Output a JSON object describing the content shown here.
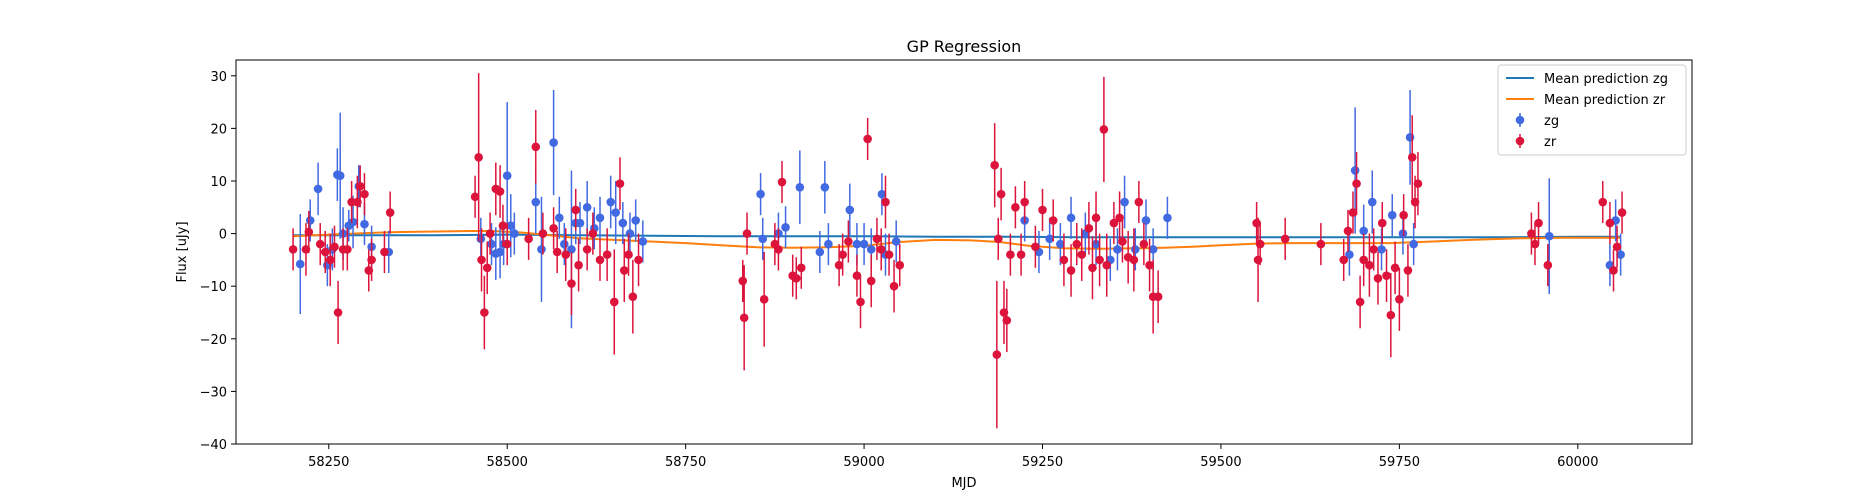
{
  "chart_data": {
    "type": "scatter",
    "title": "GP Regression",
    "xlabel": "MJD",
    "ylabel": "Flux [uJy]",
    "xlim": [
      58120,
      60160
    ],
    "ylim": [
      -40,
      33
    ],
    "xticks": [
      58250,
      58500,
      58750,
      59000,
      59250,
      59500,
      59750,
      60000
    ],
    "yticks": [
      -40,
      -30,
      -20,
      -10,
      0,
      10,
      20,
      30
    ],
    "legend_position": "upper right",
    "legend": [
      "Mean prediction zg",
      "Mean prediction zr",
      "zg",
      "zr"
    ],
    "colors": {
      "zg": "#4169e1",
      "zr": "#dc143c",
      "mean_zg": "#1f77b4",
      "mean_zr": "#ff7f0e"
    },
    "lines": [
      {
        "name": "Mean prediction zg",
        "x": [
          58200,
          58300,
          58400,
          58500,
          58600,
          58700,
          58800,
          58900,
          59000,
          59100,
          59200,
          59300,
          59400,
          59500,
          59600,
          59700,
          59800,
          59900,
          60000,
          60060
        ],
        "y": [
          -0.3,
          -0.3,
          -0.3,
          -0.2,
          -0.3,
          -0.4,
          -0.5,
          -0.5,
          -0.5,
          -0.6,
          -0.6,
          -0.7,
          -0.7,
          -0.7,
          -0.7,
          -0.7,
          -0.7,
          -0.7,
          -0.6,
          -0.6
        ]
      },
      {
        "name": "Mean prediction zr",
        "x": [
          58200,
          58250,
          58300,
          58350,
          58400,
          58450,
          58480,
          58520,
          58560,
          58600,
          58650,
          58700,
          58750,
          58800,
          58850,
          58900,
          58950,
          59000,
          59050,
          59100,
          59150,
          59190,
          59230,
          59280,
          59330,
          59380,
          59420,
          59460,
          59500,
          59550,
          59600,
          59650,
          59700,
          59740,
          59780,
          59850,
          59920,
          59980,
          60060
        ],
        "y": [
          -0.5,
          -0.2,
          0.1,
          0.3,
          0.4,
          0.5,
          0.5,
          0.2,
          -0.3,
          -0.9,
          -1.2,
          -1.5,
          -1.8,
          -2.2,
          -2.6,
          -2.7,
          -2.6,
          -2.3,
          -1.6,
          -1.2,
          -1.3,
          -1.6,
          -2.3,
          -2.8,
          -2.9,
          -2.8,
          -2.7,
          -2.5,
          -2.2,
          -1.9,
          -1.8,
          -1.8,
          -1.8,
          -1.8,
          -1.6,
          -1.2,
          -0.9,
          -0.8,
          -0.8
        ]
      }
    ],
    "series": [
      {
        "name": "zg",
        "points": [
          [
            58210,
            -5.8,
            9.5
          ],
          [
            58224,
            2.5,
            4
          ],
          [
            58235,
            8.5,
            5
          ],
          [
            58248,
            -6,
            4
          ],
          [
            58255,
            -3,
            4
          ],
          [
            58262,
            11.2,
            5
          ],
          [
            58266,
            11,
            12
          ],
          [
            58270,
            0,
            5
          ],
          [
            58278,
            1.5,
            3
          ],
          [
            58284,
            2.2,
            5
          ],
          [
            58292,
            9,
            4
          ],
          [
            58300,
            1.8,
            4
          ],
          [
            58310,
            -2.5,
            4
          ],
          [
            58334,
            -3.5,
            4
          ],
          [
            58463,
            -1,
            4
          ],
          [
            58478,
            -2,
            4
          ],
          [
            58484,
            -3.8,
            5
          ],
          [
            58490,
            -3.5,
            5
          ],
          [
            58495,
            -2,
            4
          ],
          [
            58500,
            11,
            14
          ],
          [
            58505,
            1.5,
            6
          ],
          [
            58510,
            0,
            4
          ],
          [
            58540,
            6,
            6
          ],
          [
            58548,
            -3,
            10
          ],
          [
            58565,
            17.3,
            10
          ],
          [
            58573,
            3,
            4
          ],
          [
            58580,
            -2,
            4
          ],
          [
            58590,
            -3,
            15
          ],
          [
            58596,
            2,
            4
          ],
          [
            58602,
            2,
            4
          ],
          [
            58612,
            5,
            5
          ],
          [
            58622,
            1,
            4
          ],
          [
            58630,
            3,
            4
          ],
          [
            58645,
            6,
            5
          ],
          [
            58652,
            4,
            6
          ],
          [
            58662,
            2,
            4
          ],
          [
            58672,
            0,
            4
          ],
          [
            58680,
            2.5,
            4
          ],
          [
            58690,
            -1.5,
            4
          ],
          [
            58855,
            7.5,
            4
          ],
          [
            58858,
            -1,
            4
          ],
          [
            58880,
            0,
            4
          ],
          [
            58890,
            1.2,
            4
          ],
          [
            58910,
            8.8,
            7
          ],
          [
            58938,
            -3.5,
            4
          ],
          [
            58945,
            8.8,
            5
          ],
          [
            58950,
            -2,
            4
          ],
          [
            58980,
            4.5,
            5
          ],
          [
            58990,
            -2,
            4
          ],
          [
            59000,
            -2,
            4
          ],
          [
            59010,
            -3,
            4
          ],
          [
            59025,
            7.5,
            4
          ],
          [
            59030,
            -4,
            4
          ],
          [
            59045,
            -1.5,
            4
          ],
          [
            59225,
            2.5,
            4
          ],
          [
            59245,
            -3.5,
            4
          ],
          [
            59260,
            -1,
            4
          ],
          [
            59275,
            -2,
            4
          ],
          [
            59290,
            3,
            4
          ],
          [
            59310,
            0,
            4
          ],
          [
            59325,
            -2,
            4
          ],
          [
            59345,
            -5,
            4
          ],
          [
            59355,
            -3,
            4
          ],
          [
            59365,
            6,
            5
          ],
          [
            59380,
            -3,
            4
          ],
          [
            59395,
            2.5,
            4
          ],
          [
            59405,
            -3,
            4
          ],
          [
            59425,
            3,
            4
          ],
          [
            59680,
            -4,
            4
          ],
          [
            59688,
            12,
            12
          ],
          [
            59700,
            0.5,
            5
          ],
          [
            59712,
            6,
            6
          ],
          [
            59725,
            -3,
            4
          ],
          [
            59740,
            3.5,
            4
          ],
          [
            59755,
            0,
            4
          ],
          [
            59765,
            18.3,
            9
          ],
          [
            59770,
            -2,
            4
          ],
          [
            59960,
            -0.5,
            11
          ],
          [
            60045,
            -6,
            4
          ],
          [
            60053,
            2.5,
            4
          ],
          [
            60060,
            -4,
            4
          ]
        ]
      },
      {
        "name": "zr",
        "points": [
          [
            58200,
            -3,
            4
          ],
          [
            58218,
            -3,
            5
          ],
          [
            58222,
            0.3,
            4
          ],
          [
            58238,
            -2,
            4
          ],
          [
            58245,
            -3.5,
            4
          ],
          [
            58252,
            -5,
            5
          ],
          [
            58258,
            -2.5,
            4
          ],
          [
            58263,
            -15,
            6
          ],
          [
            58270,
            -3,
            4
          ],
          [
            58276,
            -3,
            4
          ],
          [
            58282,
            6,
            4
          ],
          [
            58290,
            6,
            5
          ],
          [
            58294,
            9,
            4
          ],
          [
            58300,
            7.5,
            4
          ],
          [
            58306,
            -7,
            4
          ],
          [
            58310,
            -5,
            4
          ],
          [
            58328,
            -3.5,
            4
          ],
          [
            58336,
            4,
            4
          ],
          [
            58455,
            7,
            4
          ],
          [
            58460,
            14.5,
            16
          ],
          [
            58464,
            -5,
            6
          ],
          [
            58468,
            -15,
            7
          ],
          [
            58472,
            -6.5,
            5
          ],
          [
            58476,
            0,
            4
          ],
          [
            58484,
            8.5,
            5
          ],
          [
            58490,
            8,
            5
          ],
          [
            58494,
            1.5,
            4
          ],
          [
            58500,
            -2,
            4
          ],
          [
            58530,
            -1,
            4
          ],
          [
            58540,
            16.5,
            7
          ],
          [
            58550,
            0,
            4
          ],
          [
            58565,
            1,
            4
          ],
          [
            58570,
            -3.5,
            4
          ],
          [
            58582,
            -4,
            5
          ],
          [
            58590,
            -9.5,
            6
          ],
          [
            58596,
            4.5,
            4
          ],
          [
            58600,
            -6,
            5
          ],
          [
            58612,
            -3,
            4
          ],
          [
            58620,
            0,
            4
          ],
          [
            58630,
            -5,
            4
          ],
          [
            58640,
            -4,
            5
          ],
          [
            58650,
            -13,
            10
          ],
          [
            58658,
            9.5,
            5
          ],
          [
            58664,
            -7,
            6
          ],
          [
            58670,
            -4,
            4
          ],
          [
            58676,
            -12,
            7
          ],
          [
            58684,
            -5,
            5
          ],
          [
            58830,
            -9,
            4
          ],
          [
            58832,
            -16,
            10
          ],
          [
            58836,
            0,
            4
          ],
          [
            58860,
            -12.5,
            9
          ],
          [
            58875,
            -2,
            4
          ],
          [
            58880,
            -3,
            4
          ],
          [
            58885,
            9.8,
            4
          ],
          [
            58900,
            -8,
            4
          ],
          [
            58905,
            -8.5,
            4
          ],
          [
            58912,
            -6.5,
            4
          ],
          [
            58965,
            -6,
            4
          ],
          [
            58970,
            -4,
            4
          ],
          [
            58978,
            -1.5,
            4
          ],
          [
            58990,
            -8,
            4
          ],
          [
            58995,
            -13,
            5
          ],
          [
            59005,
            18,
            4
          ],
          [
            59010,
            -9,
            5
          ],
          [
            59018,
            -1,
            4
          ],
          [
            59024,
            -3,
            4
          ],
          [
            59030,
            6,
            5
          ],
          [
            59035,
            -4,
            4
          ],
          [
            59042,
            -10,
            5
          ],
          [
            59050,
            -6,
            4
          ],
          [
            59183,
            13,
            8
          ],
          [
            59186,
            -23,
            14
          ],
          [
            59188,
            -1,
            4
          ],
          [
            59192,
            7.5,
            5
          ],
          [
            59196,
            -15,
            6
          ],
          [
            59200,
            -16.5,
            6
          ],
          [
            59205,
            -4,
            4
          ],
          [
            59212,
            5,
            4
          ],
          [
            59220,
            -4,
            4
          ],
          [
            59225,
            6,
            4
          ],
          [
            59240,
            -2.5,
            4
          ],
          [
            59250,
            4.5,
            4
          ],
          [
            59265,
            2.5,
            4
          ],
          [
            59280,
            -5,
            5
          ],
          [
            59290,
            -7,
            5
          ],
          [
            59298,
            -2,
            4
          ],
          [
            59305,
            -4,
            5
          ],
          [
            59315,
            1,
            5
          ],
          [
            59320,
            -6.5,
            6
          ],
          [
            59325,
            3,
            5
          ],
          [
            59330,
            -5,
            5
          ],
          [
            59336,
            19.8,
            10
          ],
          [
            59340,
            -6,
            6
          ],
          [
            59350,
            2,
            4
          ],
          [
            59358,
            3,
            5
          ],
          [
            59362,
            -1.5,
            4
          ],
          [
            59370,
            -4.5,
            5
          ],
          [
            59378,
            -5,
            6
          ],
          [
            59385,
            6,
            4
          ],
          [
            59392,
            -2,
            4
          ],
          [
            59400,
            -6,
            5
          ],
          [
            59405,
            -12,
            7
          ],
          [
            59412,
            -12,
            5
          ],
          [
            59550,
            2,
            4
          ],
          [
            59552,
            -5,
            8
          ],
          [
            59555,
            -2,
            4
          ],
          [
            59590,
            -1,
            4
          ],
          [
            59640,
            -2,
            4
          ],
          [
            59672,
            -5,
            4
          ],
          [
            59678,
            0.5,
            4
          ],
          [
            59685,
            4,
            4
          ],
          [
            59690,
            9.5,
            6
          ],
          [
            59695,
            -13,
            5
          ],
          [
            59700,
            -5,
            5
          ],
          [
            59708,
            -6,
            6
          ],
          [
            59714,
            -3,
            4
          ],
          [
            59720,
            -8.5,
            5
          ],
          [
            59726,
            2,
            4
          ],
          [
            59732,
            -8,
            5
          ],
          [
            59738,
            -15.5,
            8
          ],
          [
            59744,
            -6.5,
            5
          ],
          [
            59750,
            -12.5,
            6
          ],
          [
            59756,
            3.5,
            4
          ],
          [
            59762,
            -7,
            5
          ],
          [
            59768,
            14.5,
            8
          ],
          [
            59772,
            6,
            5
          ],
          [
            59776,
            9.5,
            6
          ],
          [
            59935,
            0,
            4
          ],
          [
            59940,
            -2,
            4
          ],
          [
            59945,
            2,
            4
          ],
          [
            59958,
            -6,
            4
          ],
          [
            60035,
            6,
            4
          ],
          [
            60045,
            2,
            4
          ],
          [
            60050,
            -7,
            4
          ],
          [
            60055,
            -2.5,
            4
          ],
          [
            60062,
            4,
            4
          ]
        ]
      }
    ]
  }
}
